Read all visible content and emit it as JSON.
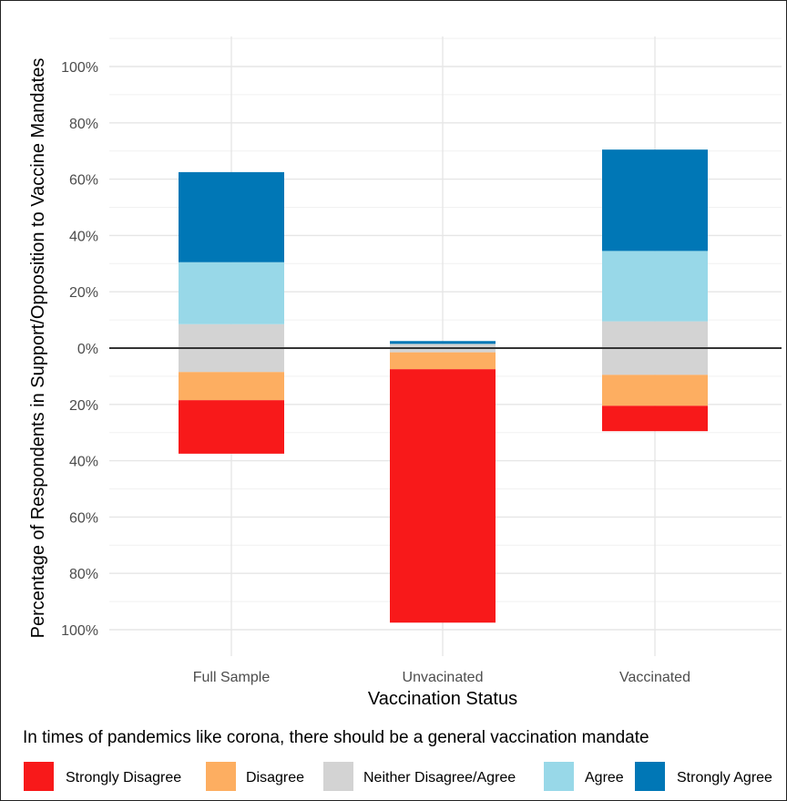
{
  "chart_data": {
    "type": "bar",
    "stacked": "diverging",
    "title": "",
    "xlabel": "Vaccination Status",
    "ylabel": "Percentage of Respondents in Support/Opposition to Vaccine Mandates",
    "categories": [
      "Full Sample",
      "Unvacinated",
      "Vaccinated"
    ],
    "ylim": [
      -100,
      100
    ],
    "y_ticks": [
      -100,
      -80,
      -60,
      -40,
      -20,
      0,
      20,
      40,
      60,
      80,
      100
    ],
    "y_tick_labels": [
      "100%",
      "80%",
      "60%",
      "40%",
      "20%",
      "0%",
      "20%",
      "40%",
      "60%",
      "80%",
      "100%"
    ],
    "grid": true,
    "legend_title": "In times of pandemics like corona, there should be a general vaccination mandate",
    "legend_position": "bottom",
    "series": [
      {
        "name": "Strongly Disagree",
        "color": "#f8191a",
        "side": "negative",
        "values": [
          19,
          90,
          9
        ]
      },
      {
        "name": "Disagree",
        "color": "#fdae61",
        "side": "negative",
        "values": [
          10,
          6,
          11
        ]
      },
      {
        "name": "Neither Disagree/Agree",
        "color": "#d3d3d3",
        "side": "split",
        "values": [
          17,
          3,
          19
        ]
      },
      {
        "name": "Agree",
        "color": "#98d8e8",
        "side": "positive",
        "values": [
          22,
          0,
          25
        ]
      },
      {
        "name": "Strongly Agree",
        "color": "#0077b6",
        "side": "positive",
        "values": [
          32,
          1,
          36
        ]
      }
    ]
  }
}
